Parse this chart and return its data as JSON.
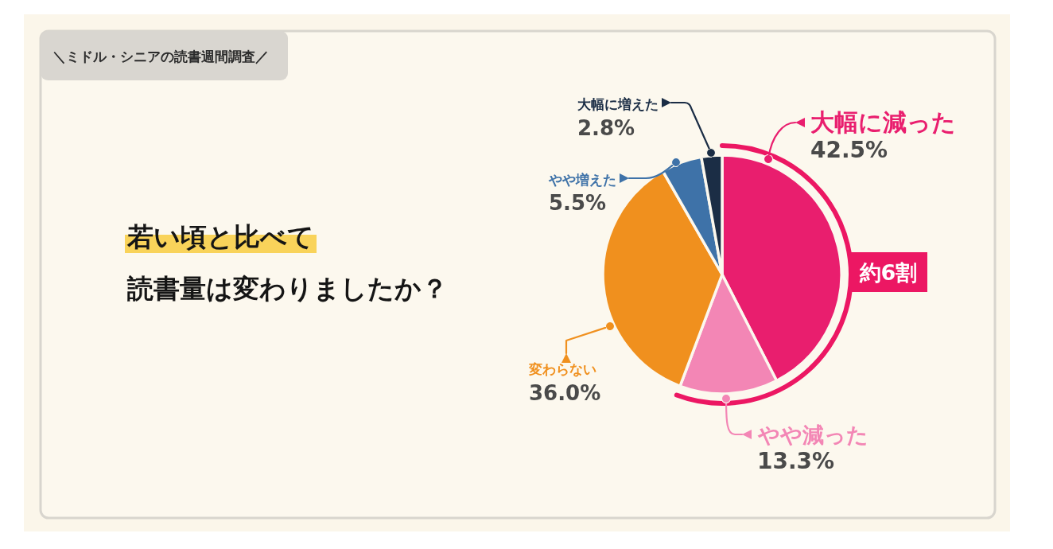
{
  "chart_data": {
    "type": "pie",
    "subtitle": "＼ミドル・シニアの読書週間調査／",
    "title": "若い頃と比べて読書量は変わりましたか？",
    "categories": [
      "大幅に減った",
      "やや減った",
      "変わらない",
      "やや増えた",
      "大幅に増えた"
    ],
    "values": [
      42.5,
      13.3,
      36.0,
      5.5,
      2.8
    ],
    "colors": [
      "#e91e6e",
      "#f386b5",
      "#f0901e",
      "#3e72a8",
      "#1b2d45"
    ],
    "value_labels": [
      "42.5%",
      "13.3%",
      "36.0%",
      "5.5%",
      "2.8%"
    ],
    "annotations": [
      "約6割"
    ]
  }
}
